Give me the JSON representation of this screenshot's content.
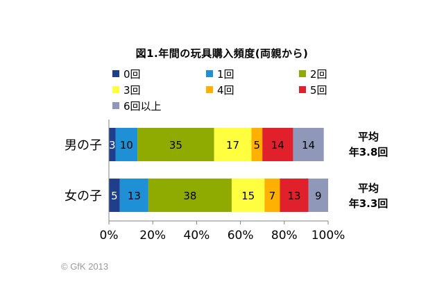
{
  "chart_data": {
    "type": "bar",
    "orientation": "horizontal",
    "stacked": true,
    "percent_stacked": true,
    "title": "図1.年間の玩具購入頻度(両親から)",
    "categories": [
      "男の子",
      "女の子"
    ],
    "series": [
      {
        "name": "0回",
        "color": "#1f3f8c",
        "values": [
          3,
          5
        ]
      },
      {
        "name": "1回",
        "color": "#1f8fd6",
        "values": [
          10,
          13
        ]
      },
      {
        "name": "2回",
        "color": "#8faa00",
        "values": [
          35,
          38
        ]
      },
      {
        "name": "3回",
        "color": "#ffff40",
        "values": [
          17,
          15
        ]
      },
      {
        "name": "4回",
        "color": "#ffb000",
        "values": [
          5,
          7
        ]
      },
      {
        "name": "5回",
        "color": "#e0202a",
        "values": [
          14,
          13
        ]
      },
      {
        "name": "6回以上",
        "color": "#8f98b8",
        "values": [
          14,
          9
        ]
      }
    ],
    "xlim": [
      0,
      100
    ],
    "x_ticks": [
      "0%",
      "20%",
      "40%",
      "60%",
      "80%",
      "100%"
    ],
    "grid": false,
    "legend": "top",
    "averages": [
      {
        "line1": "平均",
        "line2": "年3.8回"
      },
      {
        "line1": "平均",
        "line2": "年3.3回"
      }
    ]
  },
  "footer": {
    "copyright": "© GfK 2013"
  }
}
